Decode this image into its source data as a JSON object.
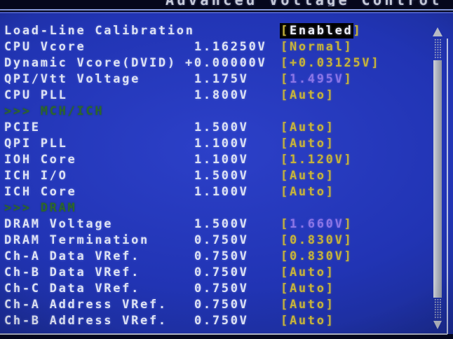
{
  "title": "Advanced Voltage Control",
  "glyphs": {
    "bracket_open": "[",
    "bracket_close": "]"
  },
  "colors": {
    "panel_blue": "#2134b4",
    "option_yellow": "#c6b33b",
    "changed_purple": "#8b76e6",
    "label_white": "#dde2f4",
    "section_green": "#2d662d",
    "selected_bg": "#000000"
  },
  "rows": [
    {
      "type": "item",
      "style": "selected",
      "label": "Load-Line Calibration",
      "value": "",
      "setting": "Enabled"
    },
    {
      "type": "item",
      "style": "normal",
      "label": "CPU Vcore",
      "value": "1.16250V",
      "setting": "Normal"
    },
    {
      "type": "item",
      "style": "normal",
      "label": "Dynamic Vcore(DVID)",
      "value": "+0.00000V",
      "setting": "+0.03125V",
      "shift": true
    },
    {
      "type": "item",
      "style": "changed",
      "label": "QPI/Vtt Voltage",
      "value": "1.175V",
      "setting": "1.495V"
    },
    {
      "type": "item",
      "style": "normal",
      "label": "CPU PLL",
      "value": "1.800V",
      "setting": "Auto"
    },
    {
      "type": "section",
      "label": ">>> MCH/ICH"
    },
    {
      "type": "item",
      "style": "normal",
      "label": "PCIE",
      "value": "1.500V",
      "setting": "Auto"
    },
    {
      "type": "item",
      "style": "normal",
      "label": "QPI PLL",
      "value": "1.100V",
      "setting": "Auto"
    },
    {
      "type": "item",
      "style": "normal",
      "label": "IOH Core",
      "value": "1.100V",
      "setting": "1.120V"
    },
    {
      "type": "item",
      "style": "normal",
      "label": "ICH I/O",
      "value": "1.500V",
      "setting": "Auto"
    },
    {
      "type": "item",
      "style": "normal",
      "label": "ICH Core",
      "value": "1.100V",
      "setting": "Auto"
    },
    {
      "type": "section",
      "label": ">>> DRAM"
    },
    {
      "type": "item",
      "style": "changed",
      "label": "DRAM Voltage",
      "value": "1.500V",
      "setting": "1.660V"
    },
    {
      "type": "item",
      "style": "normal",
      "label": "DRAM Termination",
      "value": "0.750V",
      "setting": "0.830V"
    },
    {
      "type": "item",
      "style": "normal",
      "label": "Ch-A Data VRef.",
      "value": "0.750V",
      "setting": "0.830V"
    },
    {
      "type": "item",
      "style": "normal",
      "label": "Ch-B Data VRef.",
      "value": "0.750V",
      "setting": "Auto"
    },
    {
      "type": "item",
      "style": "normal",
      "label": "Ch-C Data VRef.",
      "value": "0.750V",
      "setting": "Auto"
    },
    {
      "type": "item",
      "style": "normal",
      "label": "Ch-A Address VRef.",
      "value": "0.750V",
      "setting": "Auto"
    },
    {
      "type": "item",
      "style": "normal",
      "label": "Ch-B Address VRef.",
      "value": "0.750V",
      "setting": "Auto"
    }
  ]
}
